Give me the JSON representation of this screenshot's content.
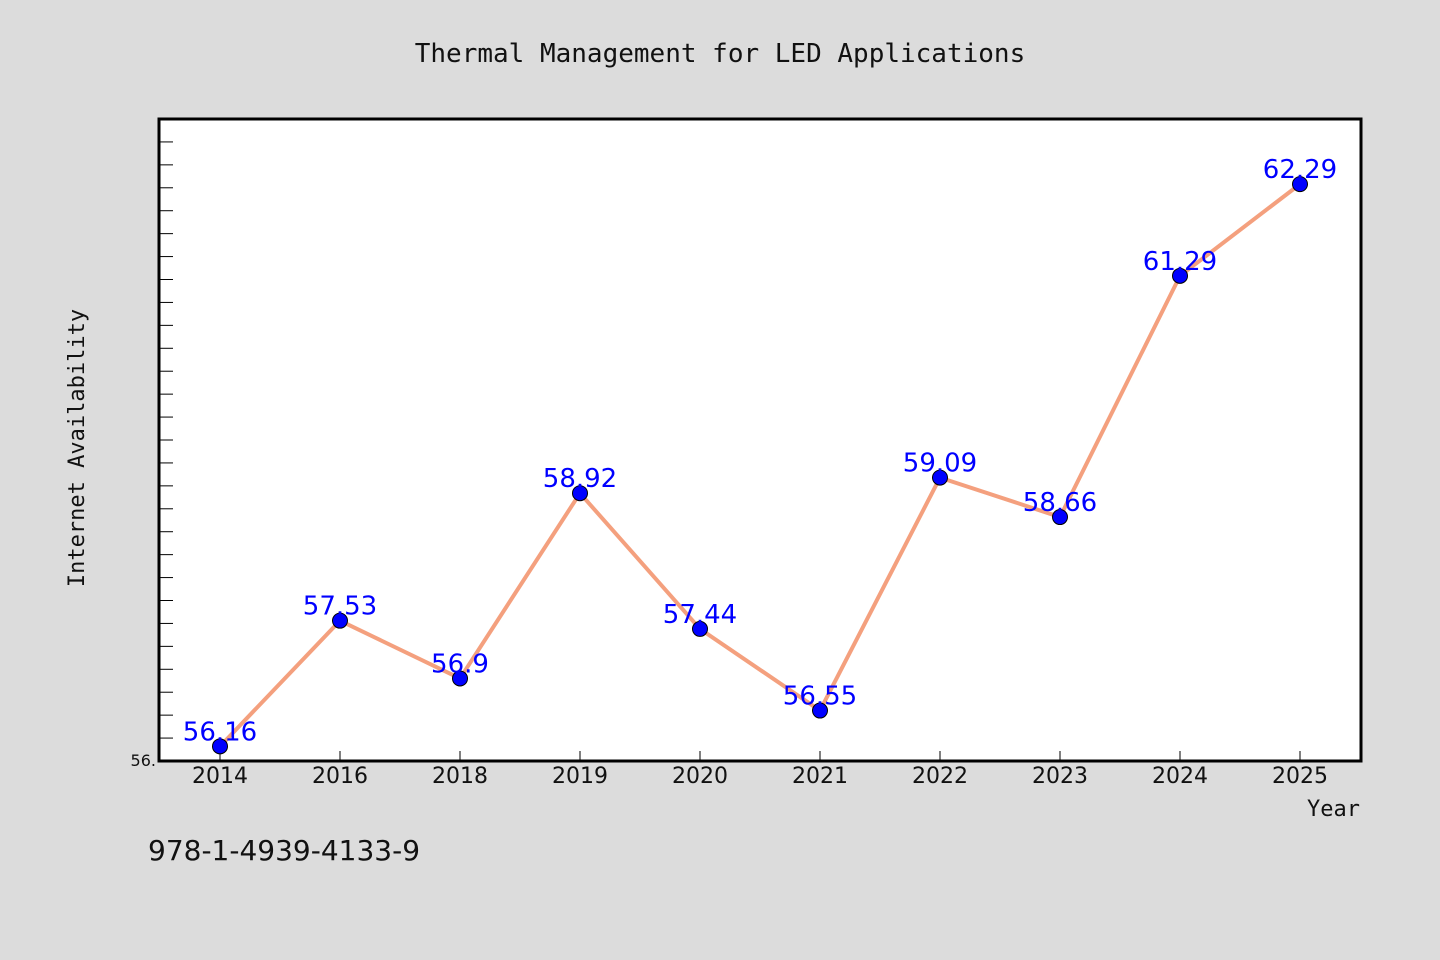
{
  "colors": {
    "background": "#dcdcdc",
    "plot_background": "#ffffff",
    "line": "#f4a07e",
    "marker": "#0000ff",
    "data_label": "#0000ff"
  },
  "footer": {
    "text": "978-1-4939-4133-9"
  },
  "chart_data": {
    "type": "line",
    "title": "Thermal Management for LED Applications",
    "xlabel": "Year",
    "ylabel": "Internet Availability",
    "categories": [
      "2014",
      "2016",
      "2018",
      "2019",
      "2020",
      "2021",
      "2022",
      "2023",
      "2024",
      "2025"
    ],
    "series": [
      {
        "values": [
          56.16,
          57.53,
          56.9,
          58.92,
          57.44,
          56.55,
          59.09,
          58.66,
          61.29,
          62.29
        ]
      }
    ],
    "data_labels": [
      "56.16",
      "57.53",
      "56.9",
      "58.92",
      "57.44",
      "56.55",
      "59.09",
      "58.66",
      "61.29",
      "62.29"
    ],
    "ylim": [
      56.0,
      63.0
    ],
    "ytick_labels": [
      "56."
    ],
    "grid": false,
    "legend": "none"
  }
}
